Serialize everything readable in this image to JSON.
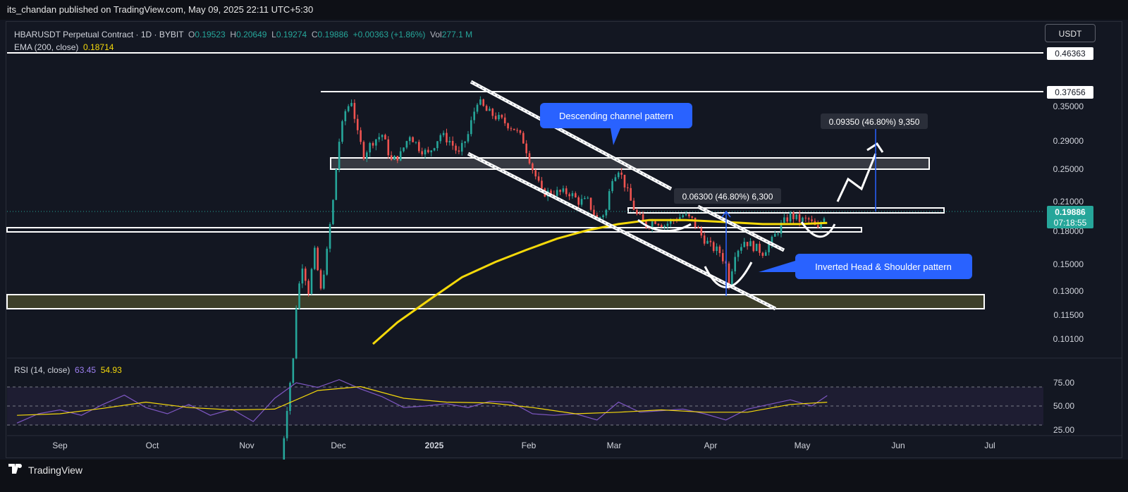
{
  "header": {
    "published": "its_chandan published on TradingView.com, May 09, 2025 22:11 UTC+5:30"
  },
  "legend": {
    "symbol": "HBARUSDT Perpetual Contract · 1D · BYBIT",
    "o_label": "O",
    "o": "0.19523",
    "h_label": "H",
    "h": "0.20649",
    "l_label": "L",
    "l": "0.19274",
    "c_label": "C",
    "c": "0.19886",
    "change": "+0.00363 (+1.86%)",
    "vol_label": "Vol",
    "vol": "277.1 M",
    "ema_label": "EMA (200, close)",
    "ema_value": "0.18714"
  },
  "currency_button": "USDT",
  "rsi_legend": {
    "label": "RSI (14, close)",
    "rsi": "63.45",
    "ma": "54.93"
  },
  "footer": {
    "brand": "TradingView"
  },
  "colors": {
    "background": "#131722",
    "up": "#26a69a",
    "down": "#ef5350",
    "ema": "#f5d90a",
    "rsi": "#7e57c2",
    "annotation": "#2962ff"
  },
  "chart_data": [
    {
      "type": "candlestick",
      "title": "HBARUSDT Perpetual Contract · 1D · BYBIT",
      "x_ticks": [
        "Sep",
        "Oct",
        "Nov",
        "Dec",
        "2025",
        "Feb",
        "Mar",
        "Apr",
        "May",
        "Jun",
        "Jul"
      ],
      "y_ticks": [
        "0.35000",
        "0.29000",
        "0.25000",
        "0.21000",
        "0.18000",
        "0.15000",
        "0.13000",
        "0.11500",
        "0.10100"
      ],
      "price_tags": {
        "top": "0.46363",
        "resistance": "0.37656",
        "current": "0.19886",
        "countdown": "07:18:55"
      },
      "ohlc_close_path": [
        [
          "2024-11-12",
          0.05
        ],
        [
          "2024-11-14",
          0.07
        ],
        [
          "2024-11-16",
          0.09
        ],
        [
          "2024-11-17",
          0.12
        ],
        [
          "2024-11-19",
          0.15
        ],
        [
          "2024-11-21",
          0.13
        ],
        [
          "2024-11-23",
          0.16
        ],
        [
          "2024-11-25",
          0.13
        ],
        [
          "2024-11-27",
          0.16
        ],
        [
          "2024-11-29",
          0.21
        ],
        [
          "2024-12-01",
          0.29
        ],
        [
          "2024-12-03",
          0.34
        ],
        [
          "2024-12-05",
          0.36
        ],
        [
          "2024-12-07",
          0.3
        ],
        [
          "2024-12-09",
          0.27
        ],
        [
          "2024-12-12",
          0.29
        ],
        [
          "2024-12-15",
          0.3
        ],
        [
          "2024-12-18",
          0.26
        ],
        [
          "2024-12-21",
          0.27
        ],
        [
          "2024-12-24",
          0.3
        ],
        [
          "2024-12-27",
          0.28
        ],
        [
          "2024-12-30",
          0.27
        ],
        [
          "2025-01-03",
          0.3
        ],
        [
          "2025-01-06",
          0.29
        ],
        [
          "2025-01-09",
          0.27
        ],
        [
          "2025-01-12",
          0.3
        ],
        [
          "2025-01-15",
          0.36
        ],
        [
          "2025-01-18",
          0.34
        ],
        [
          "2025-01-21",
          0.33
        ],
        [
          "2025-01-24",
          0.32
        ],
        [
          "2025-01-27",
          0.31
        ],
        [
          "2025-01-30",
          0.29
        ],
        [
          "2025-02-02",
          0.25
        ],
        [
          "2025-02-05",
          0.22
        ],
        [
          "2025-02-08",
          0.22
        ],
        [
          "2025-02-11",
          0.22
        ],
        [
          "2025-02-14",
          0.22
        ],
        [
          "2025-02-17",
          0.21
        ],
        [
          "2025-02-20",
          0.21
        ],
        [
          "2025-02-23",
          0.19
        ],
        [
          "2025-02-26",
          0.2
        ],
        [
          "2025-02-28",
          0.24
        ],
        [
          "2025-03-02",
          0.25
        ],
        [
          "2025-03-04",
          0.23
        ],
        [
          "2025-03-06",
          0.21
        ],
        [
          "2025-03-08",
          0.195
        ],
        [
          "2025-03-11",
          0.185
        ],
        [
          "2025-03-14",
          0.19
        ],
        [
          "2025-03-17",
          0.185
        ],
        [
          "2025-03-20",
          0.19
        ],
        [
          "2025-03-23",
          0.195
        ],
        [
          "2025-03-26",
          0.19
        ],
        [
          "2025-03-29",
          0.175
        ],
        [
          "2025-04-01",
          0.165
        ],
        [
          "2025-04-04",
          0.16
        ],
        [
          "2025-04-06",
          0.15
        ],
        [
          "2025-04-07",
          0.135
        ],
        [
          "2025-04-09",
          0.16
        ],
        [
          "2025-04-12",
          0.17
        ],
        [
          "2025-04-15",
          0.165
        ],
        [
          "2025-04-18",
          0.16
        ],
        [
          "2025-04-21",
          0.17
        ],
        [
          "2025-04-24",
          0.185
        ],
        [
          "2025-04-27",
          0.195
        ],
        [
          "2025-04-30",
          0.19
        ],
        [
          "2025-05-03",
          0.19
        ],
        [
          "2025-05-06",
          0.18
        ],
        [
          "2025-05-08",
          0.195
        ],
        [
          "2025-05-09",
          0.19886
        ]
      ],
      "ema_200_path": [
        [
          "2024-12-12",
          0.098
        ],
        [
          "2024-12-20",
          0.11
        ],
        [
          "2024-12-31",
          0.125
        ],
        [
          "2025-01-10",
          0.14
        ],
        [
          "2025-01-21",
          0.152
        ],
        [
          "2025-01-31",
          0.162
        ],
        [
          "2025-02-10",
          0.172
        ],
        [
          "2025-02-20",
          0.18
        ],
        [
          "2025-03-02",
          0.186
        ],
        [
          "2025-03-12",
          0.19
        ],
        [
          "2025-03-24",
          0.19
        ],
        [
          "2025-04-06",
          0.188
        ],
        [
          "2025-04-18",
          0.186
        ],
        [
          "2025-04-30",
          0.186
        ],
        [
          "2025-05-09",
          0.18714
        ]
      ],
      "annotations": {
        "channel_label": "Descending channel pattern",
        "ihs_label": "Inverted Head & Shoulder pattern",
        "measure_1": "0.06300 (46.80%) 6,300",
        "measure_2": "0.09350 (46.80%) 9,350"
      }
    },
    {
      "type": "line",
      "title": "RSI (14, close)",
      "y_ticks": [
        "75.00",
        "50.00",
        "25.00"
      ],
      "levels": [
        70,
        50,
        30
      ],
      "rsi_path": [
        [
          "2024-08-18",
          28
        ],
        [
          "2024-08-25",
          40
        ],
        [
          "2024-09-01",
          45
        ],
        [
          "2024-09-08",
          38
        ],
        [
          "2024-09-15",
          52
        ],
        [
          "2024-09-22",
          64
        ],
        [
          "2024-09-29",
          48
        ],
        [
          "2024-10-06",
          40
        ],
        [
          "2024-10-13",
          52
        ],
        [
          "2024-10-20",
          38
        ],
        [
          "2024-10-27",
          46
        ],
        [
          "2024-11-03",
          30
        ],
        [
          "2024-11-10",
          60
        ],
        [
          "2024-11-17",
          80
        ],
        [
          "2024-11-24",
          74
        ],
        [
          "2024-12-01",
          84
        ],
        [
          "2024-12-08",
          72
        ],
        [
          "2024-12-15",
          62
        ],
        [
          "2024-12-22",
          48
        ],
        [
          "2024-12-29",
          50
        ],
        [
          "2025-01-05",
          53
        ],
        [
          "2025-01-12",
          48
        ],
        [
          "2025-01-19",
          56
        ],
        [
          "2025-01-26",
          55
        ],
        [
          "2025-02-02",
          40
        ],
        [
          "2025-02-09",
          38
        ],
        [
          "2025-02-16",
          40
        ],
        [
          "2025-02-23",
          32
        ],
        [
          "2025-03-02",
          55
        ],
        [
          "2025-03-09",
          42
        ],
        [
          "2025-03-16",
          44
        ],
        [
          "2025-03-23",
          46
        ],
        [
          "2025-03-30",
          40
        ],
        [
          "2025-04-06",
          32
        ],
        [
          "2025-04-13",
          46
        ],
        [
          "2025-04-20",
          52
        ],
        [
          "2025-04-27",
          58
        ],
        [
          "2025-05-04",
          50
        ],
        [
          "2025-05-09",
          63.45
        ]
      ],
      "ma_path": [
        [
          "2024-08-18",
          38
        ],
        [
          "2024-09-01",
          40
        ],
        [
          "2024-09-15",
          47
        ],
        [
          "2024-09-29",
          55
        ],
        [
          "2024-10-13",
          48
        ],
        [
          "2024-10-27",
          45
        ],
        [
          "2024-11-10",
          46
        ],
        [
          "2024-11-24",
          70
        ],
        [
          "2024-12-08",
          75
        ],
        [
          "2024-12-22",
          60
        ],
        [
          "2025-01-05",
          55
        ],
        [
          "2025-01-19",
          54
        ],
        [
          "2025-02-02",
          48
        ],
        [
          "2025-02-16",
          40
        ],
        [
          "2025-03-02",
          42
        ],
        [
          "2025-03-16",
          45
        ],
        [
          "2025-03-30",
          42
        ],
        [
          "2025-04-13",
          42
        ],
        [
          "2025-04-27",
          52
        ],
        [
          "2025-05-09",
          54.93
        ]
      ]
    }
  ]
}
